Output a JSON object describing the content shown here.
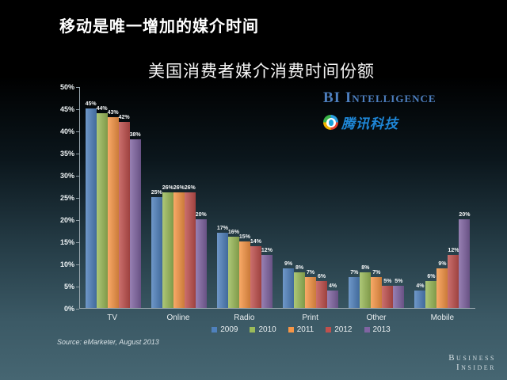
{
  "page": {
    "title": "移动是唯一增加的媒介时间",
    "source": "Source: eMarketer, August 2013",
    "brand_line1": "Business",
    "brand_line2": "Insider"
  },
  "logos": {
    "bi_intelligence": "BI Intelligence",
    "tencent": "腾讯科技"
  },
  "chart_data": {
    "type": "bar",
    "title": "美国消费者媒介消费时间份额",
    "categories": [
      "TV",
      "Online",
      "Radio",
      "Print",
      "Other",
      "Mobile"
    ],
    "series": [
      {
        "name": "2009",
        "color": "#4f81bd",
        "values": [
          45,
          25,
          17,
          9,
          7,
          4
        ]
      },
      {
        "name": "2010",
        "color": "#9bbb59",
        "values": [
          44,
          26,
          16,
          8,
          8,
          6
        ]
      },
      {
        "name": "2011",
        "color": "#f79646",
        "values": [
          43,
          26,
          15,
          7,
          7,
          9
        ]
      },
      {
        "name": "2012",
        "color": "#c0504d",
        "values": [
          42,
          26,
          14,
          6,
          5,
          12
        ]
      },
      {
        "name": "2013",
        "color": "#8064a2",
        "values": [
          38,
          20,
          12,
          4,
          5,
          20
        ]
      }
    ],
    "ylim": [
      0,
      50
    ],
    "yticks": [
      "0%",
      "5%",
      "10%",
      "15%",
      "20%",
      "25%",
      "30%",
      "35%",
      "40%",
      "45%",
      "50%"
    ],
    "value_label_suffix": "%",
    "legend_position": "bottom",
    "grid": false
  }
}
